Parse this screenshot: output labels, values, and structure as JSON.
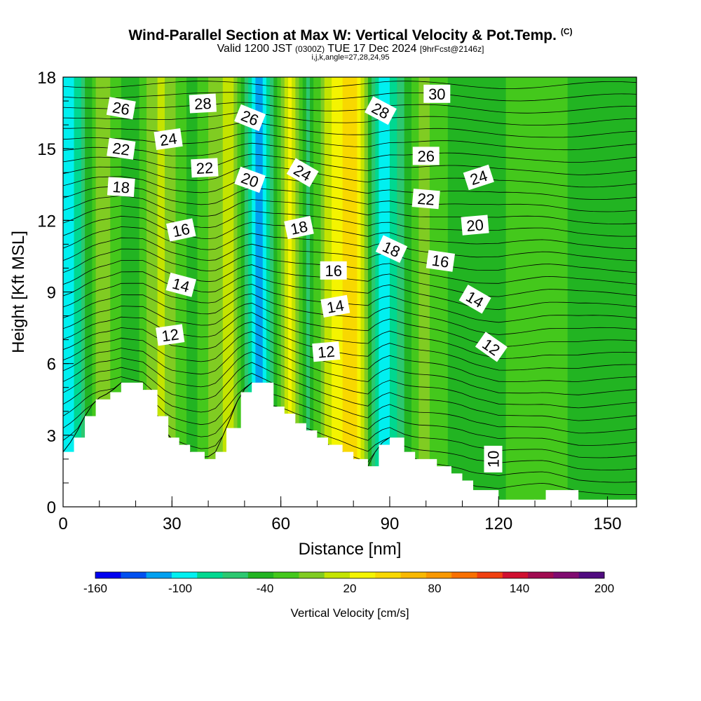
{
  "title": {
    "main": "Wind-Parallel Section at Max W: Vertical Velocity & Pot.Temp.",
    "copyright": "(C)",
    "valid_prefix": "Valid 1200 JST",
    "valid_utc": "(0300Z)",
    "valid_date": "TUE 17 Dec 2024",
    "forecast": "[9hrFcst@2146z]",
    "indices": "i,j,k,angle=27,28,24,95"
  },
  "colors": {
    "terrain": "#ffffff",
    "contour": "#000000",
    "colorbar": [
      "#0000f0",
      "#0050f0",
      "#00a0f0",
      "#00f0f0",
      "#00d890",
      "#2cc870",
      "#22b422",
      "#44c81c",
      "#80cc22",
      "#c4e400",
      "#f4f400",
      "#f8d800",
      "#f8b800",
      "#f89800",
      "#f87000",
      "#f04010",
      "#d01030",
      "#a00c50",
      "#800c70",
      "#500c80"
    ]
  },
  "chart_data": {
    "type": "heatmap",
    "xlabel": "Distance [nm]",
    "ylabel": "Height [Kft MSL]",
    "xlim": [
      0,
      158
    ],
    "ylim": [
      0,
      18
    ],
    "x_ticks": [
      0,
      30,
      60,
      90,
      120,
      150
    ],
    "y_ticks": [
      0,
      3,
      6,
      9,
      12,
      15,
      18
    ],
    "colorbar": {
      "label": "Vertical Velocity [cm/s]",
      "min": -160,
      "max": 200,
      "step": 20,
      "tick_labels": [
        "-160",
        "-100",
        "-40",
        "20",
        "80",
        "140",
        "200"
      ]
    },
    "vertical_velocity_bands": [
      {
        "x": 2,
        "value": -100
      },
      {
        "x": 11,
        "value": 20
      },
      {
        "x": 18,
        "value": -40
      },
      {
        "x": 27,
        "value": 30
      },
      {
        "x": 35,
        "value": -30
      },
      {
        "x": 46,
        "value": 30
      },
      {
        "x": 54,
        "value": -130
      },
      {
        "x": 62,
        "value": 50
      },
      {
        "x": 67,
        "value": -50
      },
      {
        "x": 73,
        "value": 30
      },
      {
        "x": 80,
        "value": 80
      },
      {
        "x": 88,
        "value": -100
      },
      {
        "x": 99,
        "value": 10
      },
      {
        "x": 110,
        "value": -40
      },
      {
        "x": 128,
        "value": -10
      },
      {
        "x": 150,
        "value": -30
      }
    ],
    "terrain_kft": [
      {
        "x": 0,
        "y": 2.3
      },
      {
        "x": 3,
        "y": 2.9
      },
      {
        "x": 6,
        "y": 3.8
      },
      {
        "x": 9,
        "y": 4.5
      },
      {
        "x": 13,
        "y": 4.8
      },
      {
        "x": 16,
        "y": 5.2
      },
      {
        "x": 22,
        "y": 4.9
      },
      {
        "x": 26,
        "y": 3.8
      },
      {
        "x": 29,
        "y": 2.9
      },
      {
        "x": 32,
        "y": 2.6
      },
      {
        "x": 35,
        "y": 2.3
      },
      {
        "x": 39,
        "y": 2.0
      },
      {
        "x": 42,
        "y": 2.3
      },
      {
        "x": 45,
        "y": 3.3
      },
      {
        "x": 49,
        "y": 4.8
      },
      {
        "x": 52,
        "y": 5.2
      },
      {
        "x": 58,
        "y": 4.2
      },
      {
        "x": 61,
        "y": 3.9
      },
      {
        "x": 64,
        "y": 3.5
      },
      {
        "x": 67,
        "y": 3.2
      },
      {
        "x": 70,
        "y": 2.9
      },
      {
        "x": 73,
        "y": 2.6
      },
      {
        "x": 77,
        "y": 2.3
      },
      {
        "x": 80,
        "y": 2.0
      },
      {
        "x": 84,
        "y": 1.7
      },
      {
        "x": 87,
        "y": 2.6
      },
      {
        "x": 90,
        "y": 2.9
      },
      {
        "x": 94,
        "y": 2.3
      },
      {
        "x": 97,
        "y": 2.0
      },
      {
        "x": 103,
        "y": 1.7
      },
      {
        "x": 107,
        "y": 1.4
      },
      {
        "x": 110,
        "y": 1.1
      },
      {
        "x": 113,
        "y": 0.7
      },
      {
        "x": 120,
        "y": 0.3
      },
      {
        "x": 133,
        "y": 0.7
      },
      {
        "x": 142,
        "y": 0.3
      },
      {
        "x": 158,
        "y": 0.3
      }
    ],
    "theta_contour_labels": [
      {
        "text": "26",
        "x": 16,
        "y": 16.7,
        "angle": 10
      },
      {
        "text": "28",
        "x": 38.5,
        "y": 16.9,
        "angle": -3
      },
      {
        "text": "24",
        "x": 29,
        "y": 15.4,
        "angle": -8
      },
      {
        "text": "22",
        "x": 16,
        "y": 15.0,
        "angle": 8
      },
      {
        "text": "22",
        "x": 39,
        "y": 14.2,
        "angle": -3
      },
      {
        "text": "18",
        "x": 16,
        "y": 13.4,
        "angle": 4
      },
      {
        "text": "16",
        "x": 32.5,
        "y": 11.6,
        "angle": -12
      },
      {
        "text": "14",
        "x": 32.5,
        "y": 9.3,
        "angle": 15
      },
      {
        "text": "12",
        "x": 29.5,
        "y": 7.2,
        "angle": -8
      },
      {
        "text": "26",
        "x": 51.5,
        "y": 16.3,
        "angle": 22
      },
      {
        "text": "20",
        "x": 51.5,
        "y": 13.7,
        "angle": 20
      },
      {
        "text": "24",
        "x": 66,
        "y": 14.0,
        "angle": 30
      },
      {
        "text": "18",
        "x": 65,
        "y": 11.7,
        "angle": -12
      },
      {
        "text": "16",
        "x": 74.5,
        "y": 9.9,
        "angle": 0
      },
      {
        "text": "14",
        "x": 75,
        "y": 8.4,
        "angle": -10
      },
      {
        "text": "12",
        "x": 72.5,
        "y": 6.5,
        "angle": -5
      },
      {
        "text": "28",
        "x": 87.5,
        "y": 16.6,
        "angle": 28
      },
      {
        "text": "30",
        "x": 103,
        "y": 17.3,
        "angle": 0
      },
      {
        "text": "26",
        "x": 100,
        "y": 14.7,
        "angle": 0
      },
      {
        "text": "22",
        "x": 100,
        "y": 12.9,
        "angle": 5
      },
      {
        "text": "18",
        "x": 90.5,
        "y": 10.8,
        "angle": 25
      },
      {
        "text": "16",
        "x": 104,
        "y": 10.3,
        "angle": 8
      },
      {
        "text": "20",
        "x": 113.5,
        "y": 11.8,
        "angle": -5
      },
      {
        "text": "24",
        "x": 114.5,
        "y": 13.8,
        "angle": -18
      },
      {
        "text": "14",
        "x": 113.5,
        "y": 8.7,
        "angle": 30
      },
      {
        "text": "12",
        "x": 118,
        "y": 6.7,
        "angle": 35
      },
      {
        "text": "10",
        "x": 118.5,
        "y": 2.0,
        "angle": -90
      }
    ]
  }
}
